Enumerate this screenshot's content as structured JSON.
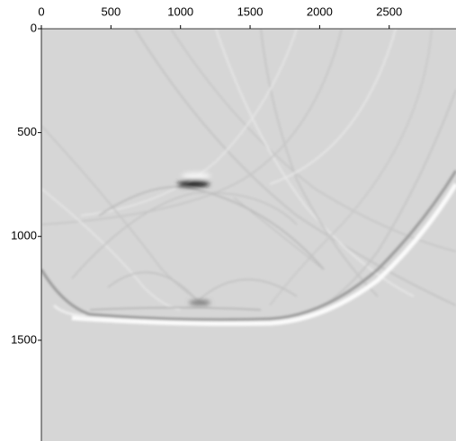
{
  "chart_data": {
    "type": "image",
    "xlim": [
      0,
      2980
    ],
    "ylim": [
      0,
      1985
    ],
    "xticks": [
      0,
      500,
      1000,
      1500,
      2000,
      2500
    ],
    "yticks": [
      0,
      500,
      1000,
      1500
    ],
    "x_axis_position": "top",
    "y_axis_inverted": true,
    "background": "#d6d6d6"
  }
}
